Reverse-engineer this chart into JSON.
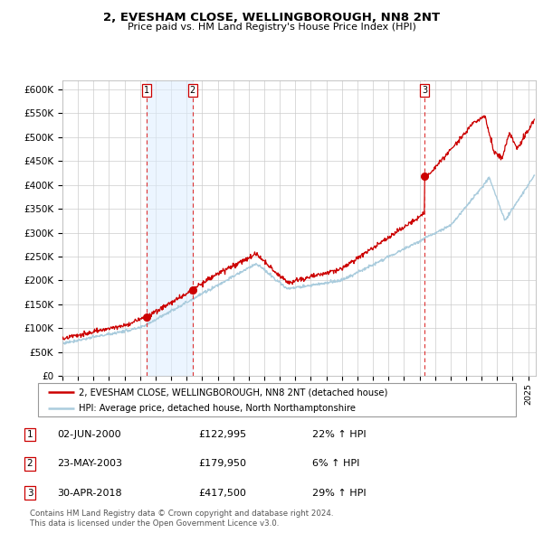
{
  "title": "2, EVESHAM CLOSE, WELLINGBOROUGH, NN8 2NT",
  "subtitle": "Price paid vs. HM Land Registry's House Price Index (HPI)",
  "background_color": "#ffffff",
  "plot_bg_color": "#ffffff",
  "grid_color": "#cccccc",
  "line1_color": "#cc0000",
  "line2_color": "#aaccdd",
  "sale_marker_color": "#cc0000",
  "vline_color": "#dd3333",
  "shade_color": "#ddeeff",
  "ylim": [
    0,
    620000
  ],
  "yticks": [
    0,
    50000,
    100000,
    150000,
    200000,
    250000,
    300000,
    350000,
    400000,
    450000,
    500000,
    550000,
    600000
  ],
  "ytick_labels": [
    "£0",
    "£50K",
    "£100K",
    "£150K",
    "£200K",
    "£250K",
    "£300K",
    "£350K",
    "£400K",
    "£450K",
    "£500K",
    "£550K",
    "£600K"
  ],
  "sales": [
    {
      "num": 1,
      "date_label": "02-JUN-2000",
      "price": "122,995",
      "pct": "22%",
      "direction": "↑",
      "x_year": 2000.42,
      "y_val": 122995
    },
    {
      "num": 2,
      "date_label": "23-MAY-2003",
      "price": "179,950",
      "pct": "6%",
      "direction": "↑",
      "x_year": 2003.38,
      "y_val": 179950
    },
    {
      "num": 3,
      "date_label": "30-APR-2018",
      "price": "417,500",
      "pct": "29%",
      "direction": "↑",
      "x_year": 2018.33,
      "y_val": 417500
    }
  ],
  "legend1_label": "2, EVESHAM CLOSE, WELLINGBOROUGH, NN8 2NT (detached house)",
  "legend2_label": "HPI: Average price, detached house, North Northamptonshire",
  "footnote1": "Contains HM Land Registry data © Crown copyright and database right 2024.",
  "footnote2": "This data is licensed under the Open Government Licence v3.0.",
  "xlim_start": 1995.0,
  "xlim_end": 2025.5
}
